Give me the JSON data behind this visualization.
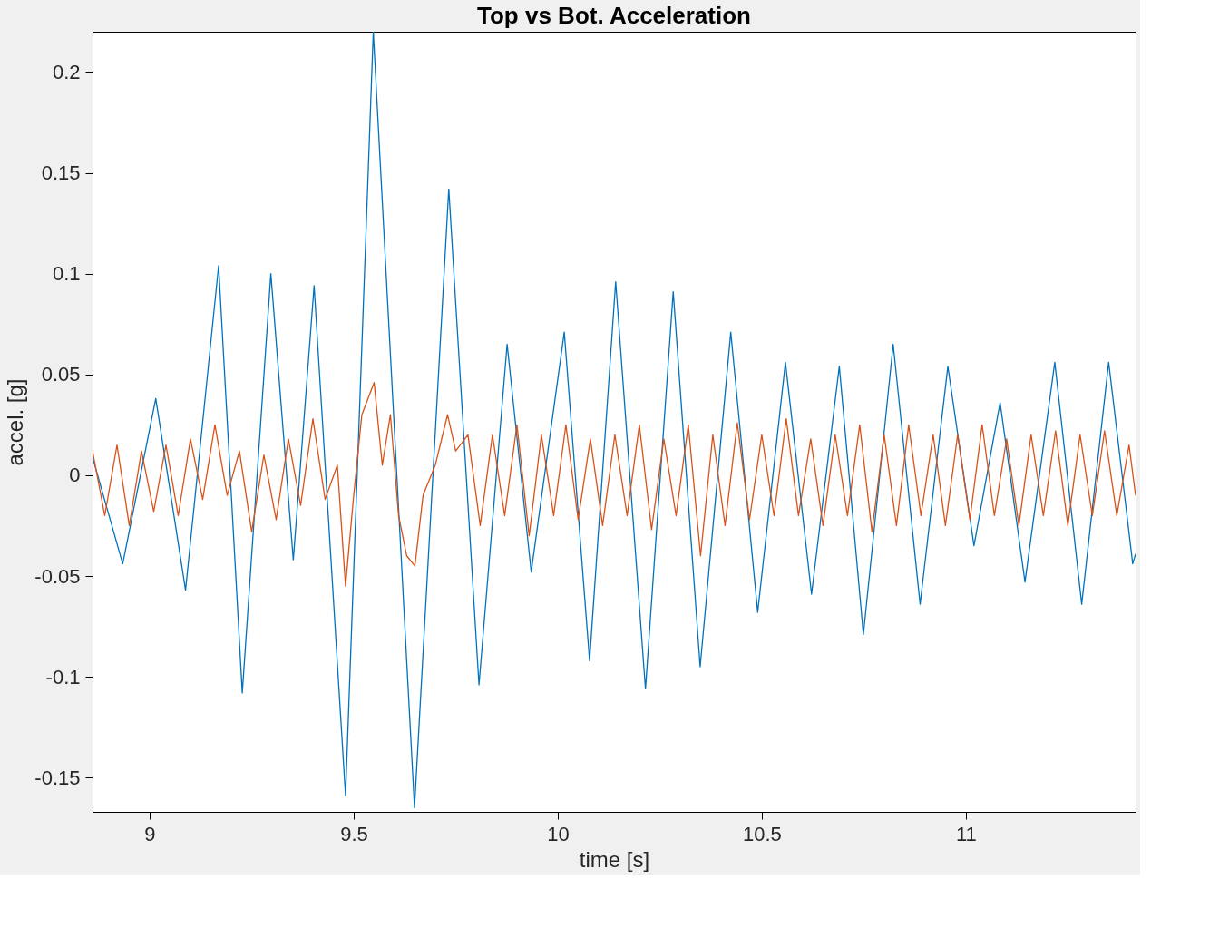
{
  "chart_data": {
    "type": "line",
    "title": "Top vs Bot. Acceleration",
    "xlabel": "time [s]",
    "ylabel": "accel. [g]",
    "xlim": [
      8.86,
      11.416
    ],
    "ylim": [
      -0.167,
      0.22
    ],
    "xticks": [
      9,
      9.5,
      10,
      10.5,
      11
    ],
    "yticks": [
      -0.15,
      -0.1,
      -0.05,
      0,
      0.05,
      0.1,
      0.15,
      0.2
    ],
    "grid": false,
    "legend": false,
    "marker": "none",
    "line_style": "solid",
    "series": [
      {
        "color": "#0072bd",
        "x": [
          8.86,
          8.934,
          9.015,
          9.088,
          9.169,
          9.227,
          9.297,
          9.352,
          9.403,
          9.48,
          9.548,
          9.649,
          9.733,
          9.807,
          9.876,
          9.935,
          10.016,
          10.078,
          10.142,
          10.215,
          10.283,
          10.349,
          10.424,
          10.49,
          10.558,
          10.622,
          10.69,
          10.749,
          10.822,
          10.888,
          10.956,
          11.02,
          11.084,
          11.145,
          11.218,
          11.284,
          11.35,
          11.409,
          11.416
        ],
        "values": [
          0.009,
          -0.044,
          0.038,
          -0.057,
          0.104,
          -0.108,
          0.1,
          -0.042,
          0.094,
          -0.159,
          0.22,
          -0.165,
          0.142,
          -0.104,
          0.065,
          -0.048,
          0.071,
          -0.092,
          0.096,
          -0.106,
          0.091,
          -0.095,
          0.071,
          -0.068,
          0.056,
          -0.059,
          0.054,
          -0.079,
          0.065,
          -0.064,
          0.054,
          -0.035,
          0.036,
          -0.053,
          0.056,
          -0.064,
          0.056,
          -0.044,
          -0.039
        ]
      },
      {
        "color": "#d95319",
        "x": [
          8.86,
          8.89,
          8.92,
          8.95,
          8.98,
          9.01,
          9.04,
          9.07,
          9.1,
          9.13,
          9.16,
          9.19,
          9.22,
          9.25,
          9.28,
          9.31,
          9.34,
          9.37,
          9.4,
          9.43,
          9.46,
          9.48,
          9.5,
          9.52,
          9.55,
          9.57,
          9.59,
          9.61,
          9.63,
          9.65,
          9.67,
          9.7,
          9.73,
          9.75,
          9.78,
          9.81,
          9.84,
          9.87,
          9.9,
          9.93,
          9.96,
          9.99,
          10.02,
          10.05,
          10.08,
          10.11,
          10.14,
          10.17,
          10.2,
          10.23,
          10.26,
          10.29,
          10.32,
          10.35,
          10.38,
          10.41,
          10.44,
          10.47,
          10.5,
          10.53,
          10.56,
          10.59,
          10.62,
          10.65,
          10.68,
          10.71,
          10.74,
          10.77,
          10.8,
          10.83,
          10.86,
          10.89,
          10.92,
          10.95,
          10.98,
          11.01,
          11.04,
          11.07,
          11.1,
          11.13,
          11.16,
          11.19,
          11.22,
          11.25,
          11.28,
          11.31,
          11.34,
          11.37,
          11.4,
          11.416
        ],
        "values": [
          0.012,
          -0.02,
          0.015,
          -0.025,
          0.012,
          -0.018,
          0.015,
          -0.02,
          0.018,
          -0.012,
          0.025,
          -0.01,
          0.012,
          -0.028,
          0.01,
          -0.022,
          0.018,
          -0.015,
          0.028,
          -0.012,
          0.005,
          -0.055,
          -0.01,
          0.03,
          0.046,
          0.005,
          0.03,
          -0.02,
          -0.04,
          -0.045,
          -0.01,
          0.005,
          0.03,
          0.012,
          0.02,
          -0.025,
          0.02,
          -0.02,
          0.025,
          -0.03,
          0.02,
          -0.02,
          0.025,
          -0.022,
          0.018,
          -0.025,
          0.02,
          -0.02,
          0.025,
          -0.027,
          0.018,
          -0.02,
          0.025,
          -0.04,
          0.02,
          -0.025,
          0.026,
          -0.022,
          0.02,
          -0.02,
          0.028,
          -0.02,
          0.018,
          -0.025,
          0.02,
          -0.02,
          0.025,
          -0.028,
          0.02,
          -0.025,
          0.025,
          -0.02,
          0.02,
          -0.025,
          0.02,
          -0.022,
          0.025,
          -0.02,
          0.018,
          -0.025,
          0.02,
          -0.02,
          0.022,
          -0.025,
          0.02,
          -0.02,
          0.022,
          -0.02,
          0.015,
          -0.01
        ]
      }
    ]
  }
}
